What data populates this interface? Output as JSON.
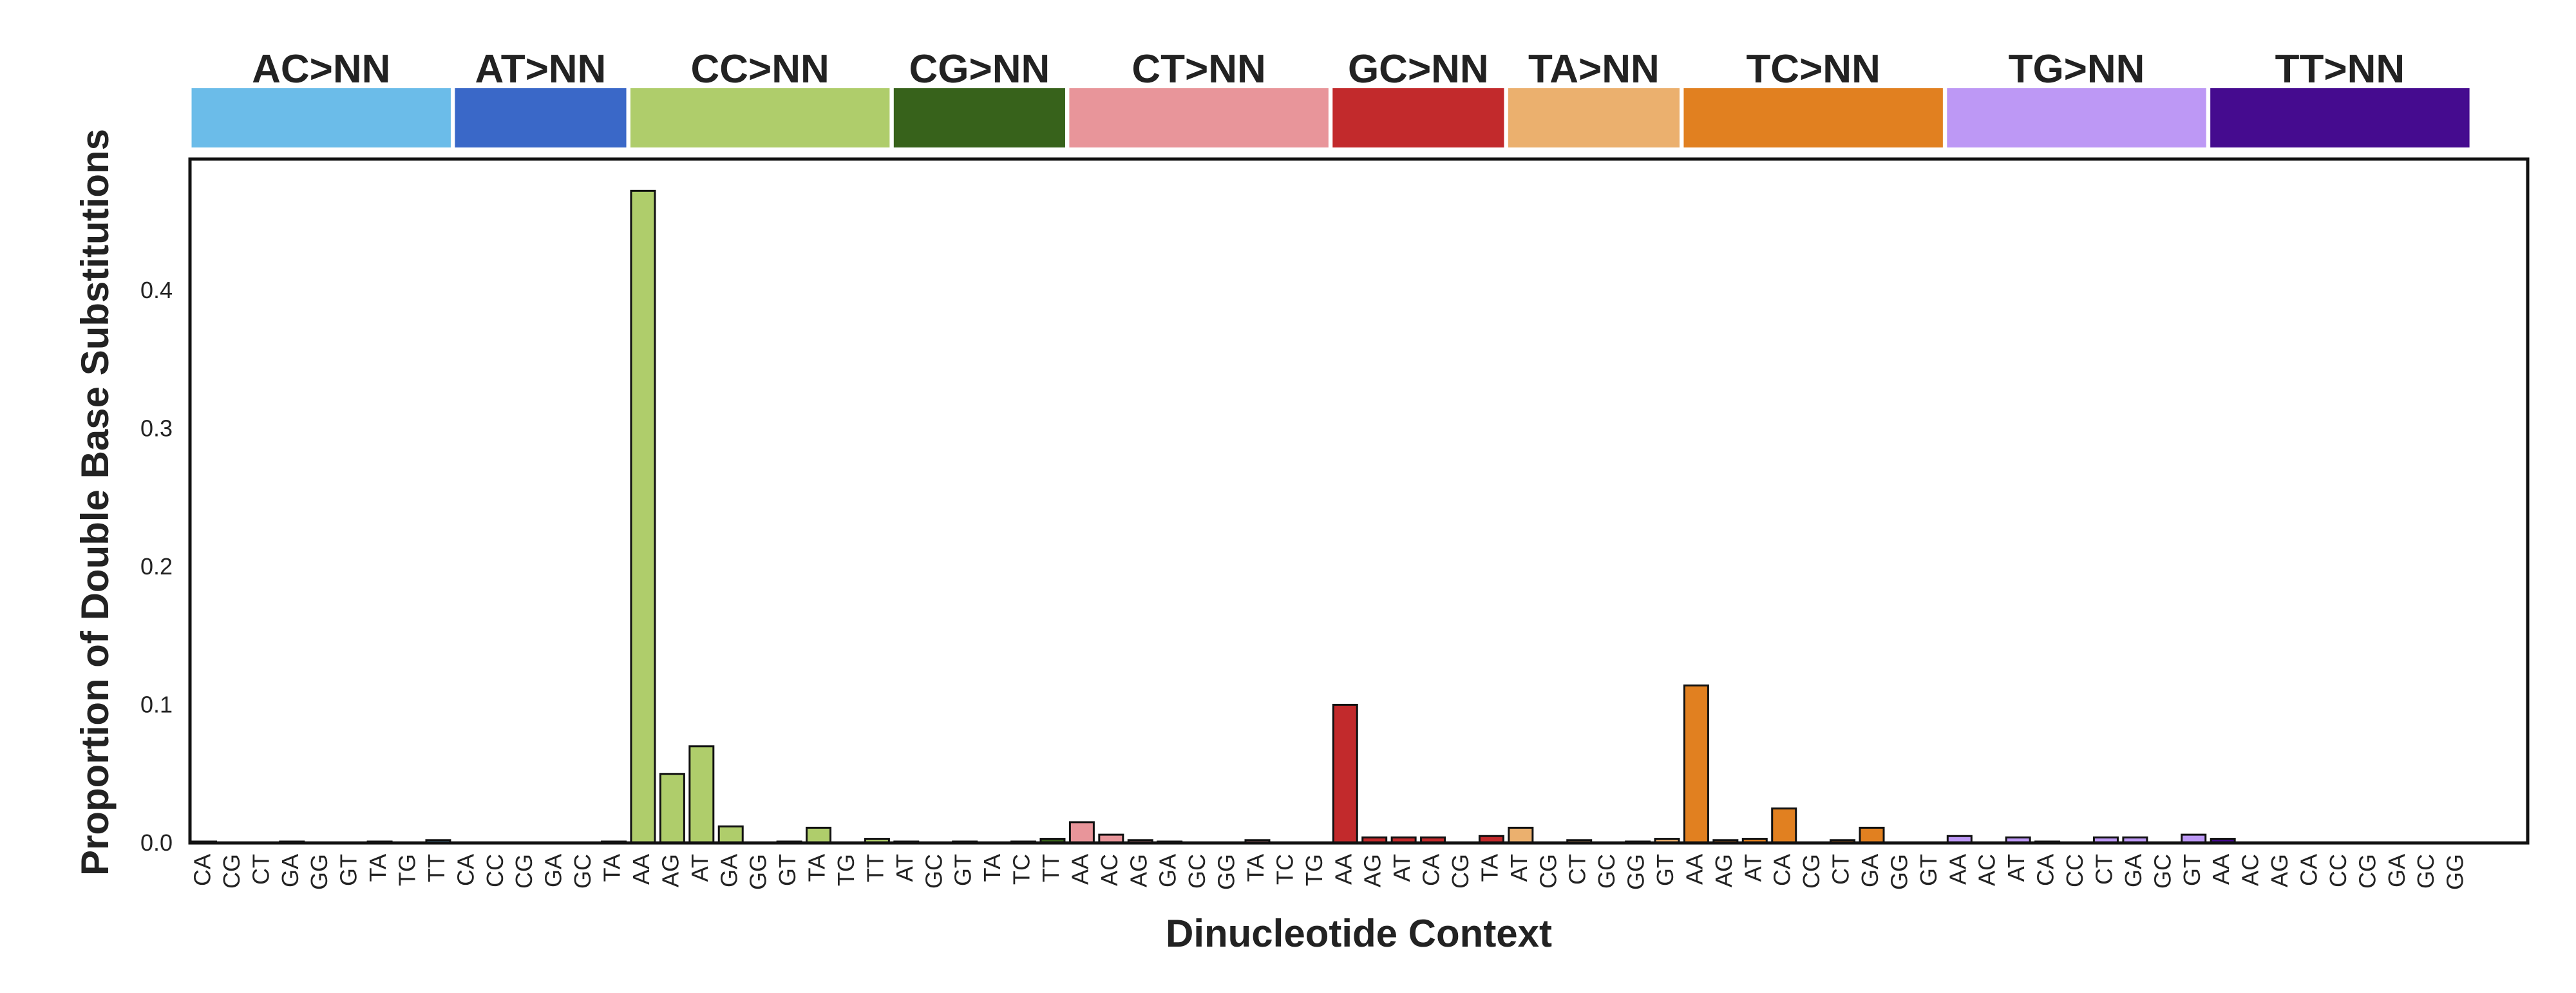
{
  "chart_data": {
    "type": "bar",
    "xlabel": "Dinucleotide Context",
    "ylabel": "Proportion of Double Base Substitutions",
    "ylim": [
      0,
      0.495
    ],
    "yticks": [
      0.0,
      0.1,
      0.2,
      0.3,
      0.4
    ],
    "ytick_labels": [
      "0.0",
      "0.1",
      "0.2",
      "0.3",
      "0.4"
    ],
    "grid": false,
    "groups": [
      {
        "name": "AC>NN",
        "color": "#6bbce9",
        "categories": [
          "CA",
          "CG",
          "CT",
          "GA",
          "GG",
          "GT",
          "TA",
          "TG",
          "TT"
        ],
        "values": [
          0.001,
          0.0,
          0.0,
          0.001,
          0.0,
          0.0,
          0.001,
          0.0,
          0.002
        ]
      },
      {
        "name": "AT>NN",
        "color": "#3a68c8",
        "categories": [
          "CA",
          "CC",
          "CG",
          "GA",
          "GC",
          "TA"
        ],
        "values": [
          0.0,
          0.0,
          0.0,
          0.0,
          0.0,
          0.001
        ]
      },
      {
        "name": "CC>NN",
        "color": "#afcd6b",
        "categories": [
          "AA",
          "AG",
          "AT",
          "GA",
          "GG",
          "GT",
          "TA",
          "TG",
          "TT"
        ],
        "values": [
          0.472,
          0.05,
          0.07,
          0.012,
          0.0,
          0.001,
          0.011,
          0.0,
          0.003
        ]
      },
      {
        "name": "CG>NN",
        "color": "#37621b",
        "categories": [
          "AT",
          "GC",
          "GT",
          "TA",
          "TC",
          "TT"
        ],
        "values": [
          0.001,
          0.0,
          0.001,
          0.0,
          0.001,
          0.003
        ]
      },
      {
        "name": "CT>NN",
        "color": "#e8959a",
        "categories": [
          "AA",
          "AC",
          "AG",
          "GA",
          "GC",
          "GG",
          "TA",
          "TC",
          "TG"
        ],
        "values": [
          0.015,
          0.006,
          0.002,
          0.001,
          0.0,
          0.0,
          0.002,
          0.0,
          0.0
        ]
      },
      {
        "name": "GC>NN",
        "color": "#c22a2c",
        "categories": [
          "AA",
          "AG",
          "AT",
          "CA",
          "CG",
          "TA"
        ],
        "values": [
          0.1,
          0.004,
          0.004,
          0.004,
          0.0,
          0.005
        ]
      },
      {
        "name": "TA>NN",
        "color": "#ebb06e",
        "categories": [
          "AT",
          "CG",
          "CT",
          "GC",
          "GG",
          "GT"
        ],
        "values": [
          0.011,
          0.0,
          0.002,
          0.0,
          0.001,
          0.003
        ]
      },
      {
        "name": "TC>NN",
        "color": "#e18020",
        "categories": [
          "AA",
          "AG",
          "AT",
          "CA",
          "CG",
          "CT",
          "GA",
          "GG",
          "GT"
        ],
        "values": [
          0.114,
          0.002,
          0.003,
          0.025,
          0.0,
          0.002,
          0.011,
          0.0,
          0.0
        ]
      },
      {
        "name": "TG>NN",
        "color": "#bd98f5",
        "categories": [
          "AA",
          "AC",
          "AT",
          "CA",
          "CC",
          "CT",
          "GA",
          "GC",
          "GT"
        ],
        "values": [
          0.005,
          0.0,
          0.004,
          0.001,
          0.0,
          0.004,
          0.004,
          0.0,
          0.006
        ]
      },
      {
        "name": "TT>NN",
        "color": "#450b8f",
        "categories": [
          "AA",
          "AC",
          "AG",
          "CA",
          "CC",
          "CG",
          "GA",
          "GC",
          "GG"
        ],
        "values": [
          0.003,
          0.0,
          0.0,
          0.0,
          0.0,
          0.0,
          0.0,
          0.0,
          0.0
        ]
      }
    ]
  }
}
